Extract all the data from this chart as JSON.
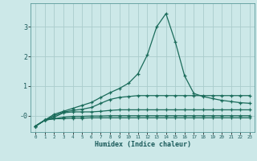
{
  "xlabel": "Humidex (Indice chaleur)",
  "background_color": "#cce8e8",
  "grid_color": "#aacccc",
  "line_color": "#1a6b5a",
  "xlim": [
    -0.5,
    23.5
  ],
  "ylim": [
    -0.55,
    3.8
  ],
  "x": [
    0,
    1,
    2,
    3,
    4,
    5,
    6,
    7,
    8,
    9,
    10,
    11,
    12,
    13,
    14,
    15,
    16,
    17,
    18,
    19,
    20,
    21,
    22,
    23
  ],
  "lines": [
    [
      -0.35,
      -0.15,
      -0.1,
      -0.1,
      -0.08,
      -0.08,
      -0.07,
      -0.07,
      -0.07,
      -0.07,
      -0.07,
      -0.07,
      -0.07,
      -0.07,
      -0.07,
      -0.07,
      -0.07,
      -0.07,
      -0.07,
      -0.07,
      -0.07,
      -0.07,
      -0.07,
      -0.07
    ],
    [
      -0.35,
      -0.15,
      -0.1,
      -0.05,
      -0.02,
      -0.02,
      -0.01,
      -0.01,
      0.0,
      0.0,
      0.0,
      0.0,
      0.0,
      0.0,
      0.0,
      0.0,
      0.0,
      0.0,
      0.0,
      0.0,
      0.0,
      0.0,
      0.0,
      0.0
    ],
    [
      -0.35,
      -0.15,
      -0.05,
      0.1,
      0.13,
      0.13,
      0.13,
      0.15,
      0.18,
      0.2,
      0.2,
      0.2,
      0.2,
      0.2,
      0.2,
      0.2,
      0.2,
      0.2,
      0.2,
      0.2,
      0.2,
      0.2,
      0.2,
      0.2
    ],
    [
      -0.35,
      -0.15,
      -0.0,
      0.12,
      0.18,
      0.22,
      0.28,
      0.42,
      0.55,
      0.62,
      0.65,
      0.68,
      0.68,
      0.68,
      0.68,
      0.68,
      0.68,
      0.68,
      0.68,
      0.68,
      0.68,
      0.68,
      0.68,
      0.68
    ],
    [
      -0.35,
      -0.15,
      0.05,
      0.15,
      0.25,
      0.35,
      0.45,
      0.62,
      0.78,
      0.92,
      1.1,
      1.42,
      2.05,
      3.0,
      3.45,
      2.5,
      1.35,
      0.75,
      0.65,
      0.58,
      0.52,
      0.48,
      0.44,
      0.42
    ]
  ],
  "yticks": [
    0,
    1,
    2,
    3
  ],
  "ytick_labels": [
    "-0",
    "1",
    "2",
    "3"
  ],
  "xticks": [
    0,
    1,
    2,
    3,
    4,
    5,
    6,
    7,
    8,
    9,
    10,
    11,
    12,
    13,
    14,
    15,
    16,
    17,
    18,
    19,
    20,
    21,
    22,
    23
  ]
}
